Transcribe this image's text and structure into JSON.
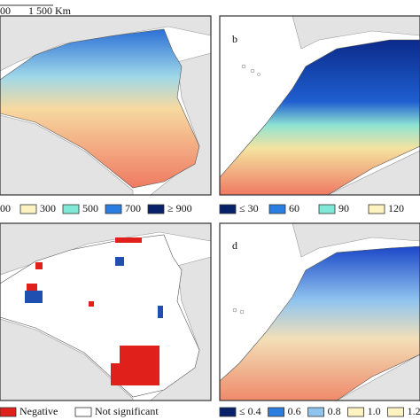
{
  "scale_bar": {
    "start": "00",
    "end": "1 500 Km"
  },
  "panels": [
    {
      "letter": "",
      "legend": [
        {
          "label": "00"
        },
        {
          "label": "300",
          "color": "#fdf3c0"
        },
        {
          "label": "500",
          "color": "#7fe8d6"
        },
        {
          "label": "700",
          "color": "#2a7de1"
        },
        {
          "label": "≥ 900",
          "color": "#08226a"
        }
      ]
    },
    {
      "letter": "b",
      "legend": [
        {
          "label": "≤ 30",
          "color": "#08226a"
        },
        {
          "label": "60",
          "color": "#2a7de1"
        },
        {
          "label": "90",
          "color": "#7fe8d6"
        },
        {
          "label": "120",
          "color": "#fdf3c0"
        }
      ]
    },
    {
      "letter": "",
      "legend": [
        {
          "label": "Negative",
          "color": "#e0201b"
        },
        {
          "label": "Not significant",
          "color": "#ffffff"
        }
      ]
    },
    {
      "letter": "d",
      "legend": [
        {
          "label": "≤ 0.4",
          "color": "#08226a"
        },
        {
          "label": "0.6",
          "color": "#2a7de1"
        },
        {
          "label": "0.8",
          "color": "#8fc4ef"
        },
        {
          "label": "1.0",
          "color": "#fdf3c0"
        },
        {
          "label": "1.2",
          "color": "#fdf3c0"
        }
      ]
    }
  ]
}
